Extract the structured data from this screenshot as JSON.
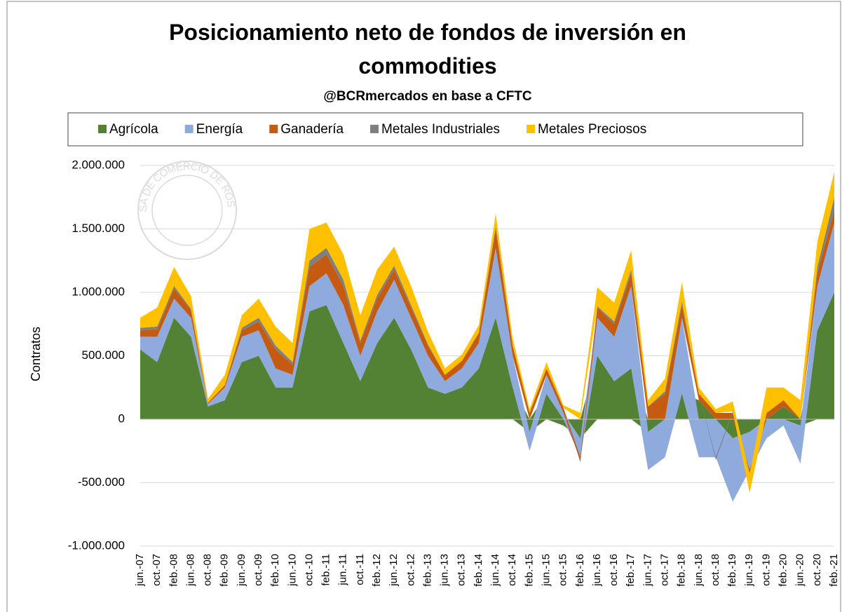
{
  "chart_data": {
    "type": "area",
    "title": "Posicionamiento neto de fondos de inversión en commodities",
    "subtitle": "@BCRmercados en base a CFTC",
    "watermark": "BOLSA DE COMERCIO DE ROSARIO",
    "y_label": "Contratos",
    "stacked": true,
    "grid": true,
    "legend": "top",
    "categories": [
      "jun.-07",
      "oct.-07",
      "feb.-08",
      "jun.-08",
      "oct.-08",
      "feb.-09",
      "jun.-09",
      "oct.-09",
      "feb.-10",
      "jun.-10",
      "oct.-10",
      "feb.-11",
      "jun.-11",
      "oct.-11",
      "feb.-12",
      "jun.-12",
      "oct.-12",
      "feb.-13",
      "jun.-13",
      "oct.-13",
      "feb.-14",
      "jun.-14",
      "oct.-14",
      "feb.-15",
      "jun.-15",
      "oct.-15",
      "feb.-16",
      "jun.-16",
      "oct.-16",
      "feb.-17",
      "jun.-17",
      "oct.-17",
      "feb.-18",
      "jun.-18",
      "oct.-18",
      "feb.-19",
      "jun.-19",
      "oct.-19",
      "feb.-20",
      "jun.-20",
      "oct.-20",
      "feb.-21"
    ],
    "series": [
      {
        "name": "Agrícola",
        "color": "#548235",
        "values": [
          550000,
          450000,
          800000,
          650000,
          100000,
          150000,
          450000,
          500000,
          250000,
          250000,
          850000,
          900000,
          600000,
          300000,
          600000,
          800000,
          550000,
          250000,
          200000,
          250000,
          400000,
          800000,
          250000,
          -100000,
          200000,
          -50000,
          -150000,
          500000,
          300000,
          400000,
          -100000,
          0,
          200000,
          150000,
          0,
          -150000,
          -100000,
          0,
          100000,
          -50000,
          700000,
          1000000
        ]
      },
      {
        "name": "Energía",
        "color": "#8faadc",
        "values": [
          100000,
          200000,
          150000,
          150000,
          20000,
          100000,
          200000,
          200000,
          150000,
          100000,
          200000,
          250000,
          300000,
          200000,
          250000,
          300000,
          250000,
          250000,
          100000,
          150000,
          200000,
          550000,
          250000,
          -150000,
          150000,
          50000,
          -150000,
          300000,
          350000,
          650000,
          -300000,
          -300000,
          600000,
          -300000,
          -300000,
          -500000,
          -300000,
          -150000,
          -50000,
          -300000,
          350000,
          550000
        ]
      },
      {
        "name": "Ganadería",
        "color": "#c55a11",
        "values": [
          50000,
          60000,
          80000,
          60000,
          10000,
          20000,
          50000,
          70000,
          150000,
          80000,
          150000,
          150000,
          150000,
          100000,
          100000,
          80000,
          80000,
          80000,
          50000,
          60000,
          80000,
          150000,
          80000,
          50000,
          50000,
          40000,
          -30000,
          80000,
          100000,
          100000,
          100000,
          200000,
          100000,
          50000,
          50000,
          50000,
          -20000,
          50000,
          50000,
          0,
          100000,
          100000
        ]
      },
      {
        "name": "Metales Industriales",
        "color": "#7f7f7f",
        "values": [
          20000,
          20000,
          20000,
          10000,
          0,
          0,
          20000,
          30000,
          30000,
          20000,
          50000,
          50000,
          50000,
          20000,
          30000,
          30000,
          20000,
          10000,
          0,
          0,
          0,
          20000,
          0,
          0,
          0,
          0,
          -10000,
          10000,
          20000,
          30000,
          0,
          20000,
          30000,
          0,
          -20000,
          10000,
          -10000,
          0,
          0,
          0,
          50000,
          100000
        ]
      },
      {
        "name": "Metales Preciosos",
        "color": "#ffc000",
        "values": [
          80000,
          150000,
          150000,
          100000,
          30000,
          80000,
          100000,
          150000,
          150000,
          150000,
          250000,
          200000,
          200000,
          200000,
          200000,
          150000,
          150000,
          100000,
          50000,
          50000,
          60000,
          100000,
          60000,
          30000,
          50000,
          20000,
          50000,
          150000,
          150000,
          150000,
          50000,
          100000,
          150000,
          50000,
          30000,
          80000,
          -150000,
          200000,
          100000,
          150000,
          200000,
          200000
        ]
      }
    ],
    "ylim": [
      -1000000,
      2000000
    ],
    "yticks": [
      {
        "value": -1000000,
        "label": "-1.000.000"
      },
      {
        "value": -500000,
        "label": "-500.000"
      },
      0,
      {
        "value": 500000,
        "label": "500.000"
      },
      {
        "value": 1000000,
        "label": "1.000.000"
      },
      {
        "value": 1500000,
        "label": "1.500.000"
      },
      {
        "value": 2000000,
        "label": "2.000.000"
      }
    ]
  }
}
